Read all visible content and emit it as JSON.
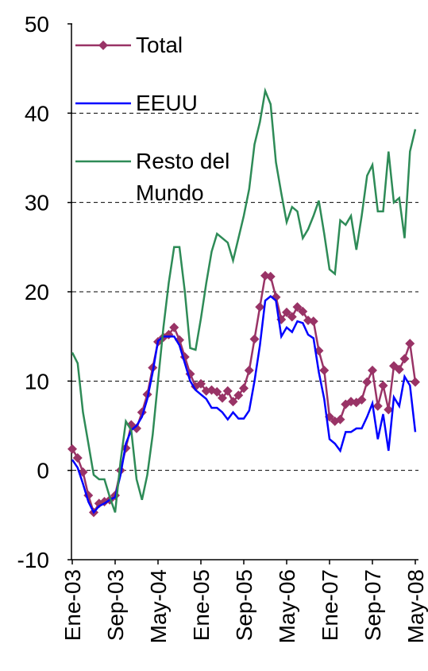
{
  "chart_data": {
    "type": "line",
    "categories": [
      "Ene-03",
      null,
      null,
      null,
      null,
      null,
      null,
      null,
      "Sep-03",
      null,
      null,
      null,
      null,
      null,
      null,
      null,
      "May-04",
      null,
      null,
      null,
      null,
      null,
      null,
      null,
      "Ene-05",
      null,
      null,
      null,
      null,
      null,
      null,
      null,
      "Sep-05",
      null,
      null,
      null,
      null,
      null,
      null,
      null,
      "May-06",
      null,
      null,
      null,
      null,
      null,
      null,
      null,
      "Ene-07",
      null,
      null,
      null,
      null,
      null,
      null,
      null,
      "Sep-07",
      null,
      null,
      null,
      null,
      null,
      null,
      null,
      "May-08"
    ],
    "series": [
      {
        "name": "Total",
        "color": "#993366",
        "marker": "diamond",
        "values": [
          2.4,
          1.4,
          -0.2,
          -2.8,
          -4.7,
          -3.7,
          -3.5,
          -3.3,
          -2.8,
          0,
          2.5,
          5.1,
          4.7,
          6.5,
          8.5,
          11.5,
          14.4,
          14.9,
          15.2,
          16.0,
          14.6,
          12.7,
          10.8,
          9.4,
          9.7,
          8.9,
          9.0,
          8.8,
          8.1,
          8.9,
          7.7,
          8.4,
          9.2,
          11.2,
          14.7,
          18.3,
          21.8,
          21.7,
          19.4,
          16.9,
          17.7,
          17.2,
          18.3,
          17.8,
          16.8,
          16.7,
          13.4,
          11.2,
          6.0,
          5.5,
          5.7,
          7.4,
          7.7,
          7.6,
          7.9,
          9.9,
          11.2,
          7.2,
          9.5,
          6.8,
          11.7,
          11.3,
          12.5,
          14.2,
          9.9
        ]
      },
      {
        "name": "EEUU",
        "color": "#0000ff",
        "values": [
          1.2,
          0.3,
          -1.5,
          -3.5,
          -4.7,
          -4,
          -3.7,
          -3.3,
          -3,
          -0.5,
          3,
          4.5,
          5,
          6,
          8,
          11,
          14.5,
          15,
          15,
          15,
          14,
          12,
          10,
          9,
          8.5,
          8,
          7,
          7,
          6.5,
          5.7,
          6.5,
          5.8,
          5.8,
          6.7,
          10,
          14,
          19,
          19.5,
          19,
          15,
          16,
          15.5,
          16.7,
          16.5,
          15.2,
          14.8,
          11,
          8,
          3.5,
          3,
          2.2,
          4.3,
          4.3,
          4.7,
          4.7,
          6,
          7.5,
          3.5,
          6.3,
          2.2,
          8.2,
          7.2,
          10.5,
          9.5,
          4.3
        ]
      },
      {
        "name": "Resto del Mundo",
        "color": "#2e8b57",
        "values": [
          13.2,
          12,
          6.5,
          3,
          -0.5,
          -1,
          -1,
          -3,
          -4.7,
          1,
          5.5,
          4.5,
          -1,
          -3.3,
          -0.5,
          4,
          10,
          16,
          21,
          25,
          25,
          20,
          13.7,
          13.5,
          17,
          21,
          24.5,
          26.5,
          26,
          25.5,
          23.5,
          26,
          28.5,
          31.5,
          36.5,
          39,
          42.5,
          41,
          34.5,
          31,
          27.8,
          29.5,
          29,
          26,
          27,
          28.5,
          30.2,
          26.5,
          22.5,
          22,
          28,
          27.5,
          28.5,
          24.7,
          28.5,
          33,
          34.2,
          29,
          29,
          35.7,
          30,
          30.5,
          26,
          35.7,
          38.2
        ]
      }
    ],
    "ylim": [
      -10,
      50
    ],
    "yticks": [
      -10,
      0,
      10,
      20,
      30,
      40,
      50
    ],
    "grid": true,
    "legend": "upper left"
  }
}
